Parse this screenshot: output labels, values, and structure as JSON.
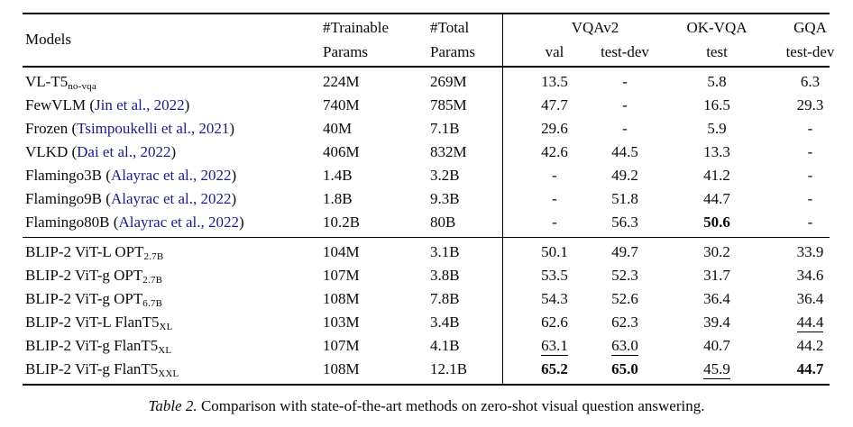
{
  "colors": {
    "citation": "#1b1b8c",
    "text": "#0a0a0a"
  },
  "table": {
    "header": {
      "models": "Models",
      "trainable_line1": "#Trainable",
      "trainable_line2": "Params",
      "total_line1": "#Total",
      "total_line2": "Params",
      "vqav2": "VQAv2",
      "vqav2_val": "val",
      "vqav2_testdev": "test-dev",
      "okvqa": "OK-VQA",
      "okvqa_test": "test",
      "gqa": "GQA",
      "gqa_testdev": "test-dev"
    },
    "groups": [
      {
        "name": "baselines",
        "rows": [
          {
            "model": {
              "base": "VL-T5",
              "sub": "no-vqa",
              "cite": ""
            },
            "values": [
              "224M",
              "269M",
              "13.5",
              "-",
              "5.8",
              "6.3"
            ]
          },
          {
            "model": {
              "base": "FewVLM",
              "sub": "",
              "cite": "Jin et al., 2022"
            },
            "values": [
              "740M",
              "785M",
              "47.7",
              "-",
              "16.5",
              "29.3"
            ]
          },
          {
            "model": {
              "base": "Frozen",
              "sub": "",
              "cite": "Tsimpoukelli et al., 2021"
            },
            "values": [
              "40M",
              "7.1B",
              "29.6",
              "-",
              "5.9",
              "-"
            ]
          },
          {
            "model": {
              "base": "VLKD",
              "sub": "",
              "cite": "Dai et al., 2022"
            },
            "values": [
              "406M",
              "832M",
              "42.6",
              "44.5",
              "13.3",
              "-"
            ]
          },
          {
            "model": {
              "base": "Flamingo3B",
              "sub": "",
              "cite": "Alayrac et al., 2022"
            },
            "values": [
              "1.4B",
              "3.2B",
              "-",
              "49.2",
              "41.2",
              "-"
            ]
          },
          {
            "model": {
              "base": "Flamingo9B",
              "sub": "",
              "cite": "Alayrac et al., 2022"
            },
            "values": [
              "1.8B",
              "9.3B",
              "-",
              "51.8",
              "44.7",
              "-"
            ]
          },
          {
            "model": {
              "base": "Flamingo80B",
              "sub": "",
              "cite": "Alayrac et al., 2022"
            },
            "values": [
              "10.2B",
              "80B",
              "-",
              "56.3",
              {
                "t": "50.6",
                "b": true
              },
              "-"
            ]
          }
        ]
      },
      {
        "name": "blip2",
        "rows": [
          {
            "model": {
              "base": "BLIP-2 ViT-L OPT",
              "sub": "2.7B",
              "cite": ""
            },
            "values": [
              "104M",
              "3.1B",
              "50.1",
              "49.7",
              "30.2",
              "33.9"
            ]
          },
          {
            "model": {
              "base": "BLIP-2 ViT-g OPT",
              "sub": "2.7B",
              "cite": ""
            },
            "values": [
              "107M",
              "3.8B",
              "53.5",
              "52.3",
              "31.7",
              "34.6"
            ]
          },
          {
            "model": {
              "base": "BLIP-2 ViT-g OPT",
              "sub": "6.7B",
              "cite": ""
            },
            "values": [
              "108M",
              "7.8B",
              "54.3",
              "52.6",
              "36.4",
              "36.4"
            ]
          },
          {
            "model": {
              "base": "BLIP-2 ViT-L FlanT5",
              "sub": "XL",
              "cite": ""
            },
            "values": [
              "103M",
              "3.4B",
              "62.6",
              "62.3",
              "39.4",
              {
                "t": "44.4",
                "u": true
              }
            ]
          },
          {
            "model": {
              "base": "BLIP-2 ViT-g FlanT5",
              "sub": "XL",
              "cite": ""
            },
            "values": [
              "107M",
              "4.1B",
              {
                "t": "63.1",
                "u": true
              },
              {
                "t": "63.0",
                "u": true
              },
              "40.7",
              "44.2"
            ]
          },
          {
            "model": {
              "base": "BLIP-2 ViT-g FlanT5",
              "sub": "XXL",
              "cite": ""
            },
            "values": [
              "108M",
              "12.1B",
              {
                "t": "65.2",
                "b": true
              },
              {
                "t": "65.0",
                "b": true
              },
              {
                "t": "45.9",
                "u": true
              },
              {
                "t": "44.7",
                "b": true
              }
            ]
          }
        ]
      }
    ]
  },
  "caption": {
    "label": "Table 2.",
    "text": "Comparison with state-of-the-art methods on zero-shot visual question answering."
  }
}
